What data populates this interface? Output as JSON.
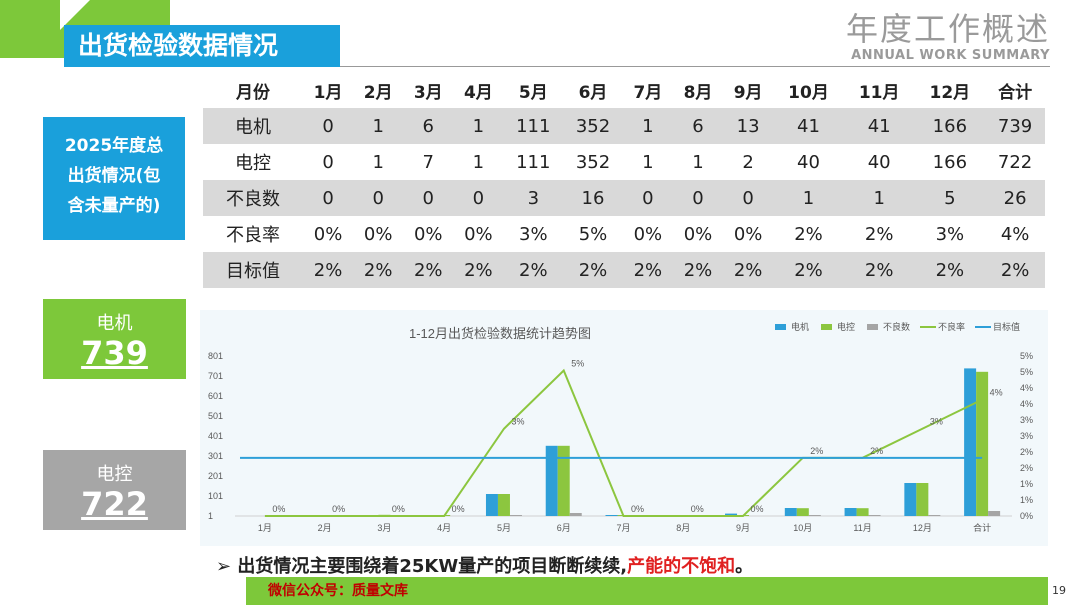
{
  "header": {
    "section_title": "出货检验数据情况",
    "deck_title": "年度工作概述",
    "deck_subtitle": "ANNUAL WORK SUMMARY"
  },
  "summary_box": {
    "text_lines": [
      "2025年度总",
      "出货情况(包",
      "含未量产的)"
    ]
  },
  "motor_card": {
    "label": "电机",
    "value": "739"
  },
  "control_card": {
    "label": "电控",
    "value": "722"
  },
  "table": {
    "headers": [
      "月份",
      "1月",
      "2月",
      "3月",
      "4月",
      "5月",
      "6月",
      "7月",
      "8月",
      "9月",
      "10月",
      "11月",
      "12月",
      "合计"
    ],
    "rows": [
      {
        "label": "电机",
        "values": [
          "0",
          "1",
          "6",
          "1",
          "111",
          "352",
          "1",
          "6",
          "13",
          "41",
          "41",
          "166",
          "739"
        ]
      },
      {
        "label": "电控",
        "values": [
          "0",
          "1",
          "7",
          "1",
          "111",
          "352",
          "1",
          "1",
          "2",
          "40",
          "40",
          "166",
          "722"
        ]
      },
      {
        "label": "不良数",
        "values": [
          "0",
          "0",
          "0",
          "0",
          "3",
          "16",
          "0",
          "0",
          "0",
          "1",
          "1",
          "5",
          "26"
        ]
      },
      {
        "label": "不良率",
        "values": [
          "0%",
          "0%",
          "0%",
          "0%",
          "3%",
          "5%",
          "0%",
          "0%",
          "0%",
          "2%",
          "2%",
          "3%",
          "4%"
        ]
      },
      {
        "label": "目标值",
        "values": [
          "2%",
          "2%",
          "2%",
          "2%",
          "2%",
          "2%",
          "2%",
          "2%",
          "2%",
          "2%",
          "2%",
          "2%",
          "2%"
        ]
      }
    ]
  },
  "chart_data": {
    "type": "bar",
    "title": "1-12月出货检验数据统计趋势图",
    "categories": [
      "1月",
      "2月",
      "3月",
      "4月",
      "5月",
      "6月",
      "7月",
      "8月",
      "9月",
      "10月",
      "11月",
      "12月",
      "合计"
    ],
    "series": [
      {
        "name": "电机",
        "type": "bar",
        "axis": "left",
        "values": [
          0,
          1,
          6,
          1,
          111,
          352,
          1,
          6,
          13,
          41,
          41,
          166,
          739
        ]
      },
      {
        "name": "电控",
        "type": "bar",
        "axis": "left",
        "values": [
          0,
          1,
          7,
          1,
          111,
          352,
          1,
          1,
          2,
          40,
          40,
          166,
          722
        ]
      },
      {
        "name": "不良数",
        "type": "bar",
        "axis": "left",
        "values": [
          0,
          0,
          0,
          0,
          3,
          16,
          0,
          0,
          0,
          1,
          1,
          5,
          26
        ]
      },
      {
        "name": "不良率",
        "type": "line",
        "axis": "right",
        "values": [
          0,
          0,
          0,
          0,
          3,
          5,
          0,
          0,
          0,
          2,
          2,
          3,
          4
        ]
      },
      {
        "name": "目标值",
        "type": "line",
        "axis": "right",
        "values": [
          2,
          2,
          2,
          2,
          2,
          2,
          2,
          2,
          2,
          2,
          2,
          2,
          2
        ]
      }
    ],
    "line_point_labels": [
      "0%",
      "0%",
      "0%",
      "0%",
      "3%",
      "5%",
      "0%",
      "0%",
      "0%",
      "2%",
      "2%",
      "3%",
      "4%"
    ],
    "left_axis_ticks": [
      "1",
      "101",
      "201",
      "301",
      "401",
      "501",
      "601",
      "701",
      "801"
    ],
    "left_ylim": [
      1,
      801
    ],
    "right_axis_ticks": [
      "0%",
      "1%",
      "1%",
      "2%",
      "2%",
      "3%",
      "3%",
      "4%",
      "4%",
      "5%",
      "5%"
    ],
    "right_ylim": [
      0,
      5.5
    ],
    "legend_position": "top-right",
    "colors": {
      "电机": "#2e9fd8",
      "电控": "#8cc63f",
      "不良数": "#a5a5a5",
      "不良率": "#8cc63f",
      "目标值": "#2e9fd8"
    }
  },
  "bullet": {
    "marker": "➢",
    "text": "出货情况主要围绕着25KW量产的项目断断续续,",
    "highlight": "产能的不饱和",
    "tail": "。"
  },
  "footer": {
    "text": "微信公众号：质量文库",
    "page": "19"
  }
}
